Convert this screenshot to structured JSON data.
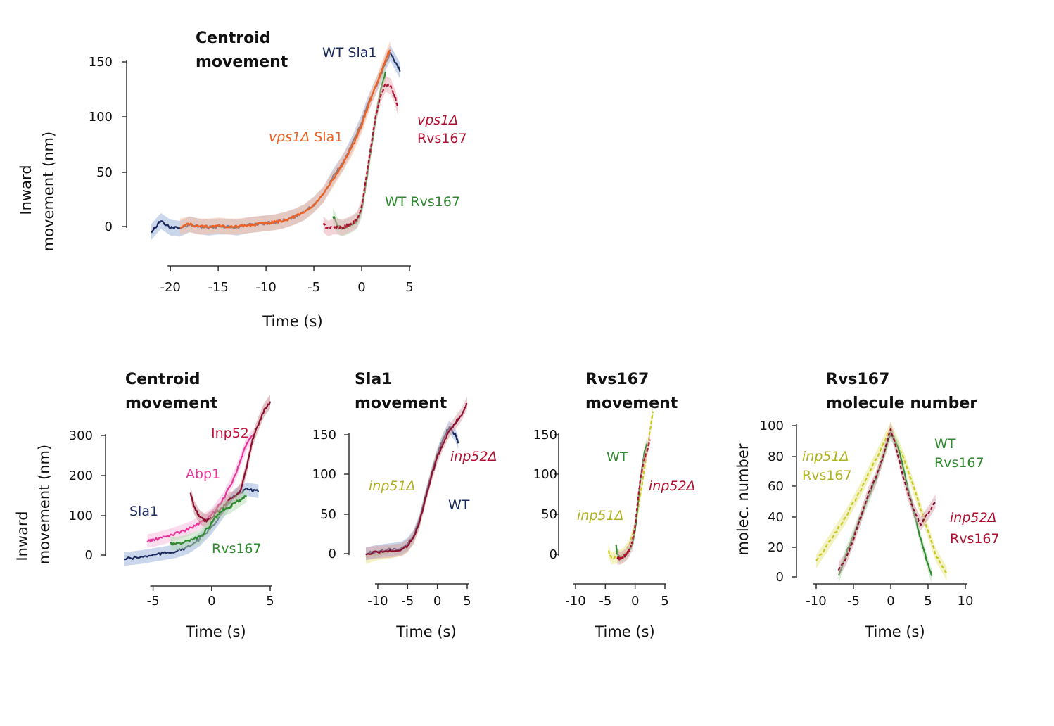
{
  "chart_data": [
    {
      "type": "line",
      "title": [
        "Centroid",
        "movement"
      ],
      "xlabel": "Time (s)",
      "ylabel": [
        "Inward",
        "movement (nm)"
      ],
      "xlim": [
        -22,
        5
      ],
      "ylim": [
        0,
        160
      ],
      "xticks": [
        -20,
        -15,
        -10,
        -5,
        0,
        5
      ],
      "yticks": [
        0,
        50,
        100,
        150
      ],
      "series": [
        {
          "id": "wt-sla1",
          "color": "#1b2a5c",
          "dash": false,
          "band": "#9fb4dc",
          "x": [
            -22,
            -21.5,
            -21,
            -20,
            -19,
            -18,
            -17,
            -16,
            -15,
            -14,
            -13,
            -12,
            -11,
            -10,
            -9,
            -8,
            -7,
            -6,
            -5,
            -4,
            -3,
            -2,
            -1,
            0,
            0.5,
            1,
            1.5,
            2,
            2.5,
            3,
            3.5,
            4
          ],
          "y": [
            -5,
            0,
            5,
            -1,
            -2,
            2,
            0,
            -1,
            0,
            0,
            -1,
            1,
            2,
            3,
            4,
            6,
            9,
            13,
            20,
            29,
            45,
            58,
            75,
            95,
            108,
            118,
            128,
            138,
            150,
            158,
            150,
            142
          ]
        },
        {
          "id": "vps1-sla1",
          "color": "#f06020",
          "dash": false,
          "band": "#f8c0a0",
          "x": [
            -19,
            -18,
            -17,
            -16,
            -15,
            -14,
            -13,
            -12,
            -11,
            -10,
            -9,
            -8,
            -7,
            -6,
            -5,
            -4,
            -3,
            -2,
            -1,
            0,
            0.5,
            1,
            1.5,
            2,
            2.5,
            3
          ],
          "y": [
            0,
            2,
            0,
            0,
            1,
            0,
            0,
            1,
            2,
            3,
            4,
            6,
            9,
            13,
            20,
            29,
            43,
            57,
            72,
            92,
            105,
            118,
            128,
            140,
            152,
            162
          ]
        },
        {
          "id": "wt-rvs167",
          "color": "#2e8b2e",
          "dash": false,
          "band": "#b8dcb8",
          "x": [
            -3,
            -2.5,
            -2,
            -1.5,
            -1,
            -0.5,
            0,
            0.5,
            1,
            1.5,
            2,
            2.5
          ],
          "y": [
            10,
            0,
            -2,
            0,
            2,
            5,
            15,
            42,
            72,
            100,
            125,
            140
          ]
        },
        {
          "id": "vps1-rvs167",
          "color": "#b01030",
          "dash": true,
          "band": "#e8b0b8",
          "x": [
            -4,
            -3.5,
            -3,
            -2.5,
            -2,
            -1.5,
            -1,
            -0.5,
            0,
            0.5,
            1,
            1.5,
            2,
            2.5,
            3,
            3.5,
            3.8
          ],
          "y": [
            2,
            -2,
            0,
            0,
            -1,
            1,
            3,
            6,
            18,
            45,
            75,
            102,
            120,
            130,
            128,
            118,
            108
          ]
        }
      ],
      "annotations": [
        {
          "text": "WT Sla1",
          "color": "#1b2a5c",
          "italic": ""
        },
        {
          "text": "vps1Δ",
          "color": "#f06020",
          "italic": "vps1Δ",
          "rest": " Sla1"
        },
        {
          "text": "vps1Δ",
          "color": "#b01030",
          "italic": "vps1Δ",
          "line2": "Rvs167"
        },
        {
          "text": "WT Rvs167",
          "color": "#2e8b2e",
          "italic": ""
        }
      ]
    },
    {
      "type": "line",
      "title": [
        "Centroid",
        "movement"
      ],
      "xlabel": "Time (s)",
      "ylabel": [
        "Inward",
        "movement (nm)"
      ],
      "xlim": [
        -7.5,
        5
      ],
      "ylim": [
        0,
        380
      ],
      "xticks": [
        -5,
        0,
        5
      ],
      "yticks": [
        0,
        100,
        200,
        300
      ],
      "series": [
        {
          "id": "sla1",
          "color": "#1b2a5c",
          "band": "#9fb4dc",
          "x": [
            -7.5,
            -6,
            -5,
            -4,
            -3,
            -2,
            -1,
            0,
            1,
            2,
            3,
            4
          ],
          "y": [
            -10,
            -5,
            0,
            5,
            10,
            20,
            40,
            70,
            110,
            150,
            165,
            160
          ]
        },
        {
          "id": "abp1",
          "color": "#e8359a",
          "band": "#f8c0e0",
          "x": [
            -5.5,
            -5,
            -4,
            -3,
            -2,
            -1,
            0,
            1,
            2,
            2.5,
            3,
            3.5
          ],
          "y": [
            35,
            38,
            45,
            55,
            65,
            80,
            100,
            140,
            200,
            240,
            280,
            300
          ]
        },
        {
          "id": "inp52",
          "color": "#8b1030",
          "band": "#c89098",
          "x": [
            -1.8,
            -1.5,
            -1,
            -0.5,
            0,
            0.5,
            1,
            1.5,
            2,
            2.5,
            3,
            3.5,
            4,
            4.5,
            5
          ],
          "y": [
            155,
            120,
            95,
            85,
            95,
            110,
            120,
            140,
            145,
            165,
            220,
            290,
            330,
            365,
            385
          ]
        },
        {
          "id": "rvs167",
          "color": "#2e8b2e",
          "band": "#b8dcb8",
          "x": [
            -3.5,
            -3,
            -2,
            -1,
            0,
            0.5,
            1,
            1.5,
            2,
            2.5,
            3
          ],
          "y": [
            30,
            28,
            35,
            45,
            80,
            100,
            115,
            120,
            130,
            140,
            150
          ]
        }
      ],
      "annotations": [
        {
          "text": "Inp52",
          "color": "#c0103a"
        },
        {
          "text": "Abp1",
          "color": "#e8359a"
        },
        {
          "text": "Sla1",
          "color": "#1b2a5c"
        },
        {
          "text": "Rvs167",
          "color": "#2e8b2e"
        }
      ]
    },
    {
      "type": "line",
      "title": [
        "Sla1",
        "movement"
      ],
      "xlabel": "Time (s)",
      "xlim": [
        -12,
        5
      ],
      "ylim": [
        0,
        180
      ],
      "xticks": [
        -10,
        -5,
        0,
        5
      ],
      "yticks": [
        0,
        50,
        100,
        150
      ],
      "series": [
        {
          "id": "inp51",
          "color": "#c8c820",
          "band": "#e8e890",
          "x": [
            -12,
            -10,
            -8,
            -6,
            -5,
            -4,
            -3,
            -2,
            -1,
            0,
            1,
            2
          ],
          "y": [
            -5,
            0,
            2,
            5,
            10,
            20,
            40,
            70,
            100,
            125,
            145,
            155
          ]
        },
        {
          "id": "wt",
          "color": "#1b2a5c",
          "band": "#9fb4dc",
          "x": [
            -12,
            -10,
            -8,
            -6,
            -5,
            -4,
            -3,
            -2,
            -1,
            0,
            1,
            2,
            3,
            3.5
          ],
          "y": [
            0,
            3,
            5,
            7,
            12,
            22,
            42,
            72,
            100,
            125,
            145,
            160,
            150,
            140
          ]
        },
        {
          "id": "inp52",
          "color": "#8b1030",
          "band": "#d8a8b0",
          "x": [
            -12,
            -10,
            -8,
            -6,
            -5,
            -4,
            -3,
            -2,
            -1,
            0,
            1,
            2,
            3,
            4,
            5
          ],
          "y": [
            0,
            2,
            3,
            5,
            10,
            20,
            40,
            70,
            98,
            122,
            140,
            155,
            165,
            175,
            190
          ]
        }
      ],
      "annotations": [
        {
          "text": "inp51Δ",
          "color": "#b0b020",
          "italic": "inp51Δ"
        },
        {
          "text": "inp52Δ",
          "color": "#b01030",
          "italic": "inp52Δ"
        },
        {
          "text": "WT",
          "color": "#1b2a5c"
        }
      ]
    },
    {
      "type": "line",
      "title": [
        "Rvs167",
        "movement"
      ],
      "xlabel": "Time (s)",
      "xlim": [
        -10,
        5
      ],
      "ylim": [
        0,
        175
      ],
      "xticks": [
        -10,
        -5,
        0,
        5
      ],
      "yticks": [
        0,
        50,
        100,
        150
      ],
      "series": [
        {
          "id": "inp51",
          "color": "#c8c820",
          "dash": true,
          "band": "#e8e890",
          "x": [
            -4.5,
            -4,
            -3,
            -2,
            -1,
            0,
            1,
            2,
            3
          ],
          "y": [
            5,
            -5,
            -3,
            0,
            10,
            35,
            80,
            130,
            180
          ]
        },
        {
          "id": "wt",
          "color": "#2e8b2e",
          "band": "#b8dcb8",
          "x": [
            -3.2,
            -3,
            -2.5,
            -2,
            -1.5,
            -1,
            -0.5,
            0,
            0.5,
            1,
            1.5,
            2
          ],
          "y": [
            12,
            0,
            -5,
            -3,
            0,
            5,
            12,
            30,
            65,
            100,
            125,
            140
          ]
        },
        {
          "id": "inp52",
          "color": "#b01030",
          "dash": true,
          "band": "#e8b0b8",
          "x": [
            -3,
            -2.5,
            -2,
            -1.5,
            -1,
            -0.5,
            0,
            0.5,
            1,
            1.5,
            2,
            2.5
          ],
          "y": [
            -5,
            -5,
            -3,
            0,
            5,
            15,
            35,
            70,
            100,
            118,
            130,
            145
          ]
        }
      ],
      "annotations": [
        {
          "text": "WT",
          "color": "#2e8b2e"
        },
        {
          "text": "inp52Δ",
          "color": "#b01030",
          "italic": "inp52Δ"
        },
        {
          "text": "inp51Δ",
          "color": "#b0b020",
          "italic": "inp51Δ"
        }
      ]
    },
    {
      "type": "line",
      "title": [
        "Rvs167",
        "molecule number"
      ],
      "xlabel": "Time (s)",
      "ylabel": [
        "molec. number"
      ],
      "xlim": [
        -10,
        10
      ],
      "ylim": [
        0,
        100
      ],
      "xticks": [
        -10,
        -5,
        0,
        5,
        10
      ],
      "yticks": [
        0,
        20,
        40,
        60,
        80,
        100
      ],
      "series": [
        {
          "id": "inp51",
          "color": "#c8c820",
          "dash": true,
          "band": "#e8e890",
          "x": [
            -10,
            -8,
            -6,
            -4,
            -2,
            0,
            2,
            4,
            6,
            7.5
          ],
          "y": [
            10,
            25,
            40,
            58,
            78,
            98,
            75,
            45,
            15,
            2
          ]
        },
        {
          "id": "wt",
          "color": "#2e8b2e",
          "band": "#b8dcb8",
          "x": [
            -7,
            -6,
            -4,
            -2,
            -1,
            0,
            1,
            2,
            3,
            4,
            5,
            5.5
          ],
          "y": [
            0,
            15,
            40,
            65,
            80,
            95,
            85,
            65,
            45,
            25,
            8,
            0
          ]
        },
        {
          "id": "inp52",
          "color": "#8b1030",
          "dash": true,
          "band": "#d8a8b0",
          "x": [
            -7,
            -6,
            -5,
            -4,
            -3,
            -2,
            -1,
            0,
            1,
            2,
            3,
            4,
            5,
            6
          ],
          "y": [
            5,
            12,
            25,
            40,
            55,
            65,
            80,
            98,
            80,
            60,
            45,
            35,
            42,
            50
          ]
        }
      ],
      "annotations": [
        {
          "text": "inp51Δ",
          "color": "#b0b020",
          "italic": "inp51Δ",
          "line2": "Rvs167"
        },
        {
          "text": "WT",
          "color": "#2e8b2e",
          "line2": "Rvs167"
        },
        {
          "text": "inp52Δ",
          "color": "#b01030",
          "italic": "inp52Δ",
          "line2": "Rvs167"
        }
      ]
    }
  ]
}
